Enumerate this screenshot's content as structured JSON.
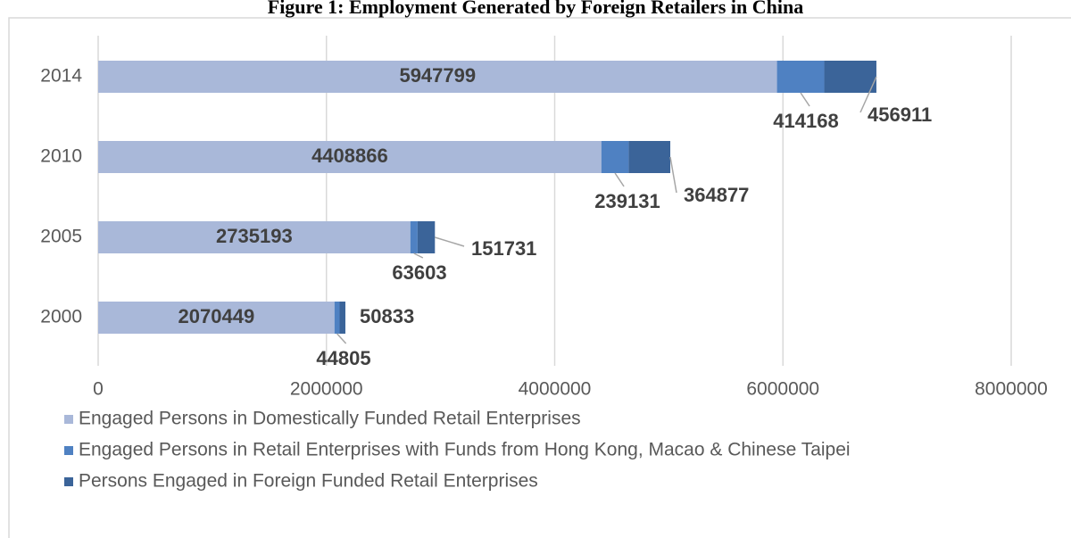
{
  "chart_data": {
    "type": "stacked-barh",
    "title": "Figure 1: Employment Generated by Foreign Retailers in China",
    "categories": [
      "2000",
      "2005",
      "2010",
      "2014"
    ],
    "series": [
      {
        "name": "Engaged Persons in Domestically Funded Retail Enterprises",
        "color": "#a9b8d9",
        "values": [
          2070449,
          2735193,
          4408866,
          5947799
        ]
      },
      {
        "name": "Engaged Persons in Retail Enterprises with Funds from Hong Kong, Macao & Chinese Taipei",
        "color": "#4f81c2",
        "values": [
          44805,
          63603,
          239131,
          414168
        ]
      },
      {
        "name": "Persons Engaged in Foreign Funded Retail Enterprises",
        "color": "#3b6499",
        "values": [
          50833,
          151731,
          364877,
          456911
        ]
      }
    ],
    "xlim": [
      0,
      8000000
    ],
    "xticks": [
      0,
      2000000,
      4000000,
      6000000,
      8000000
    ],
    "grid": true,
    "legend": "bottom"
  }
}
